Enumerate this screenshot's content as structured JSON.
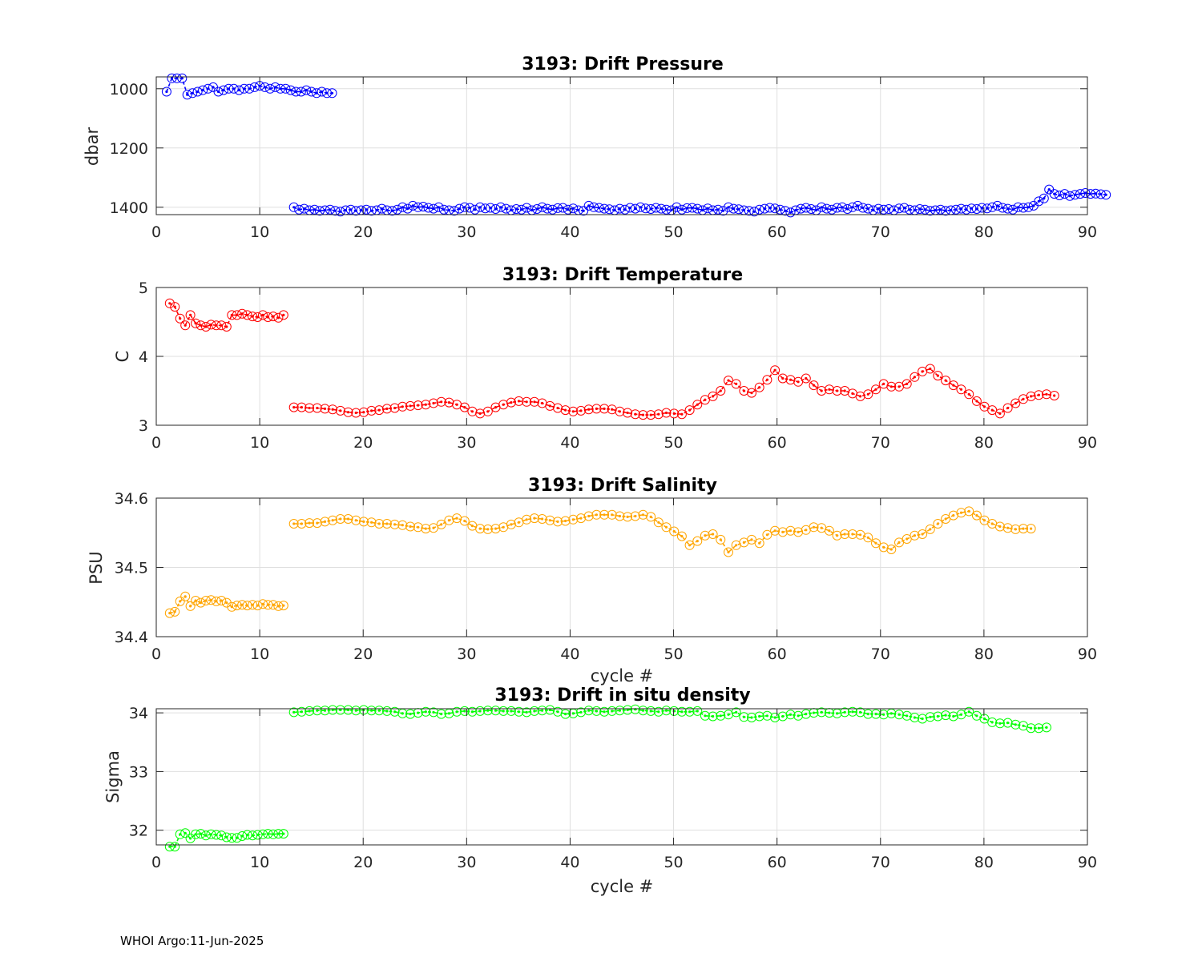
{
  "footer": "WHOI Argo:11-Jun-2025",
  "chart_data": [
    {
      "type": "line",
      "title": "3193: Drift Pressure",
      "xlabel": "",
      "ylabel": "dbar",
      "xlim": [
        0,
        90
      ],
      "ylim": [
        1425,
        960
      ],
      "y_reversed": true,
      "xticks": [
        0,
        10,
        20,
        30,
        40,
        50,
        60,
        70,
        80,
        90
      ],
      "yticks": [
        1000,
        1200,
        1400
      ],
      "grid": true,
      "color": "#0000ff",
      "marker": "open-circle",
      "segments": [
        {
          "start": 1,
          "step": 0.5,
          "values": [
            1010,
            965,
            965,
            965,
            1020,
            1015,
            1010,
            1005,
            1000,
            995,
            1010,
            1005,
            1000,
            1000,
            1005,
            1000,
            1000,
            995,
            990,
            995,
            1000,
            995,
            1000,
            1000,
            1005,
            1010,
            1010,
            1005,
            1010,
            1015,
            1010,
            1015,
            1015
          ]
        },
        {
          "start": 13.3,
          "step": 0.5,
          "values": [
            1400,
            1408,
            1405,
            1410,
            1408,
            1412,
            1410,
            1408,
            1412,
            1415,
            1410,
            1408,
            1412,
            1410,
            1408,
            1412,
            1410,
            1405,
            1410,
            1412,
            1408,
            1400,
            1405,
            1395,
            1400,
            1398,
            1402,
            1405,
            1400,
            1408,
            1410,
            1412,
            1405,
            1400,
            1402,
            1408,
            1400,
            1404,
            1402,
            1406,
            1400,
            1405,
            1410,
            1406,
            1408,
            1402,
            1410,
            1406,
            1400,
            1405,
            1408,
            1403,
            1402,
            1408,
            1404,
            1410,
            1412,
            1395,
            1400,
            1402,
            1405,
            1407,
            1410,
            1405,
            1408,
            1402,
            1405,
            1400,
            1404,
            1406,
            1402,
            1405,
            1408,
            1410,
            1400,
            1408,
            1403,
            1402,
            1405,
            1410,
            1404,
            1410,
            1408,
            1412,
            1400,
            1405,
            1407,
            1410,
            1412,
            1415,
            1408,
            1405,
            1402,
            1404,
            1408,
            1412,
            1418,
            1410,
            1405,
            1402,
            1406,
            1410,
            1400,
            1405,
            1408,
            1402,
            1400,
            1406,
            1400,
            1395,
            1402,
            1405,
            1410,
            1405,
            1408,
            1406,
            1410,
            1404,
            1402,
            1408,
            1410,
            1406,
            1408,
            1412,
            1410,
            1408,
            1412,
            1410,
            1408,
            1405,
            1408,
            1404,
            1406,
            1402,
            1404,
            1400,
            1395,
            1402,
            1405,
            1408,
            1400,
            1402,
            1400,
            1395,
            1380,
            1370,
            1340,
            1355,
            1360,
            1355,
            1362,
            1358,
            1355,
            1352,
            1355,
            1354,
            1356,
            1358
          ]
        }
      ]
    },
    {
      "type": "line",
      "title": "3193: Drift Temperature",
      "xlabel": "",
      "ylabel": "C",
      "xlim": [
        0,
        90
      ],
      "ylim": [
        3,
        5
      ],
      "xticks": [
        0,
        10,
        20,
        30,
        40,
        50,
        60,
        70,
        80,
        90
      ],
      "yticks": [
        3,
        4,
        5
      ],
      "grid": true,
      "color": "#ff0000",
      "marker": "open-circle",
      "segments": [
        {
          "start": 1.3,
          "step": 0.5,
          "values": [
            4.77,
            4.72,
            4.55,
            4.45,
            4.6,
            4.48,
            4.45,
            4.43,
            4.46,
            4.45,
            4.45,
            4.43,
            4.6,
            4.6,
            4.62,
            4.6,
            4.58,
            4.57,
            4.6,
            4.57,
            4.58,
            4.56,
            4.6
          ]
        },
        {
          "start": 13.3,
          "step": 0.75,
          "values": [
            3.26,
            3.26,
            3.25,
            3.25,
            3.24,
            3.23,
            3.21,
            3.19,
            3.18,
            3.19,
            3.21,
            3.22,
            3.24,
            3.25,
            3.27,
            3.28,
            3.29,
            3.3,
            3.32,
            3.34,
            3.33,
            3.3,
            3.26,
            3.2,
            3.17,
            3.2,
            3.26,
            3.3,
            3.33,
            3.35,
            3.34,
            3.34,
            3.32,
            3.28,
            3.25,
            3.22,
            3.2,
            3.21,
            3.23,
            3.24,
            3.24,
            3.23,
            3.2,
            3.18,
            3.16,
            3.15,
            3.15,
            3.16,
            3.18,
            3.17,
            3.16,
            3.22,
            3.3,
            3.37,
            3.42,
            3.5,
            3.65,
            3.6,
            3.5,
            3.47,
            3.55,
            3.66,
            3.8,
            3.68,
            3.66,
            3.63,
            3.68,
            3.58,
            3.5,
            3.52,
            3.5,
            3.5,
            3.46,
            3.42,
            3.45,
            3.52,
            3.6,
            3.56,
            3.56,
            3.6,
            3.7,
            3.78,
            3.82,
            3.72,
            3.65,
            3.58,
            3.52,
            3.45,
            3.35,
            3.27,
            3.22,
            3.17,
            3.25,
            3.32,
            3.38,
            3.42,
            3.44,
            3.45,
            3.43
          ]
        }
      ]
    },
    {
      "type": "line",
      "title": "3193: Drift Salinity",
      "xlabel": "cycle #",
      "ylabel": "PSU",
      "xlim": [
        0,
        90
      ],
      "ylim": [
        34.4,
        34.6
      ],
      "xticks": [
        0,
        10,
        20,
        30,
        40,
        50,
        60,
        70,
        80,
        90
      ],
      "yticks": [
        34.4,
        34.5,
        34.6
      ],
      "ytick_labels": [
        "34.4",
        "34.5",
        "34.6"
      ],
      "grid": true,
      "color": "#ffa500",
      "marker": "open-circle",
      "segments": [
        {
          "start": 1.3,
          "step": 0.5,
          "values": [
            34.434,
            34.436,
            34.451,
            34.458,
            34.444,
            34.452,
            34.449,
            34.452,
            34.453,
            34.451,
            34.452,
            34.449,
            34.443,
            34.445,
            34.446,
            34.445,
            34.446,
            34.445,
            34.447,
            34.446,
            34.446,
            34.444,
            34.445
          ]
        },
        {
          "start": 13.3,
          "step": 0.75,
          "values": [
            34.563,
            34.563,
            34.564,
            34.564,
            34.566,
            34.568,
            34.57,
            34.57,
            34.568,
            34.566,
            34.565,
            34.563,
            34.563,
            34.562,
            34.561,
            34.559,
            34.558,
            34.556,
            34.557,
            34.562,
            34.568,
            34.571,
            34.567,
            34.56,
            34.556,
            34.555,
            34.556,
            34.558,
            34.562,
            34.565,
            34.569,
            34.571,
            34.57,
            34.568,
            34.566,
            34.567,
            34.569,
            34.571,
            34.574,
            34.576,
            34.576,
            34.576,
            34.574,
            34.573,
            34.574,
            34.576,
            34.573,
            34.565,
            34.558,
            34.552,
            34.545,
            34.532,
            34.538,
            34.546,
            34.548,
            34.54,
            34.522,
            34.532,
            34.536,
            34.54,
            34.535,
            34.547,
            34.553,
            34.551,
            34.553,
            34.551,
            34.554,
            34.558,
            34.557,
            34.553,
            34.546,
            34.548,
            34.548,
            34.547,
            34.543,
            34.535,
            34.529,
            34.526,
            34.536,
            34.541,
            34.546,
            34.548,
            34.555,
            34.563,
            34.57,
            34.575,
            34.579,
            34.581,
            34.575,
            34.568,
            34.563,
            34.559,
            34.557,
            34.555,
            34.556,
            34.556
          ]
        }
      ]
    },
    {
      "type": "line",
      "title": "3193: Drift in situ density",
      "xlabel": "cycle #",
      "ylabel": "Sigma",
      "xlim": [
        0,
        90
      ],
      "ylim": [
        31.75,
        34.07
      ],
      "xticks": [
        0,
        10,
        20,
        30,
        40,
        50,
        60,
        70,
        80,
        90
      ],
      "yticks": [
        32,
        33,
        34
      ],
      "grid": true,
      "color": "#00ff00",
      "marker": "open-circle",
      "segments": [
        {
          "start": 1.3,
          "step": 0.5,
          "values": [
            31.72,
            31.72,
            31.93,
            31.95,
            31.86,
            31.93,
            31.94,
            31.91,
            31.93,
            31.92,
            31.91,
            31.88,
            31.87,
            31.87,
            31.9,
            31.92,
            31.91,
            31.92,
            31.93,
            31.94,
            31.93,
            31.94,
            31.94
          ]
        },
        {
          "start": 13.3,
          "step": 0.75,
          "values": [
            34.01,
            34.02,
            34.03,
            34.04,
            34.04,
            34.05,
            34.05,
            34.05,
            34.04,
            34.05,
            34.04,
            34.04,
            34.03,
            34.02,
            33.99,
            33.98,
            34.0,
            34.02,
            34.01,
            33.98,
            33.99,
            34.02,
            34.03,
            34.02,
            34.03,
            34.04,
            34.04,
            34.03,
            34.03,
            34.02,
            34.01,
            34.03,
            34.04,
            34.05,
            34.02,
            33.98,
            33.99,
            34.01,
            34.04,
            34.03,
            34.02,
            34.03,
            34.04,
            34.05,
            34.06,
            34.04,
            34.03,
            34.02,
            34.04,
            34.03,
            34.02,
            34.02,
            34.03,
            33.95,
            33.94,
            33.95,
            33.97,
            34.01,
            33.93,
            33.92,
            33.94,
            33.95,
            33.92,
            33.94,
            33.97,
            33.95,
            33.98,
            34.0,
            34.01,
            34.0,
            33.99,
            34.01,
            34.02,
            34.01,
            33.98,
            33.98,
            33.97,
            33.99,
            33.97,
            33.95,
            33.92,
            33.9,
            33.93,
            33.94,
            33.96,
            33.94,
            33.97,
            34.02,
            33.95,
            33.9,
            33.84,
            33.82,
            33.83,
            33.8,
            33.78,
            33.74,
            33.74,
            33.75
          ]
        }
      ]
    }
  ]
}
